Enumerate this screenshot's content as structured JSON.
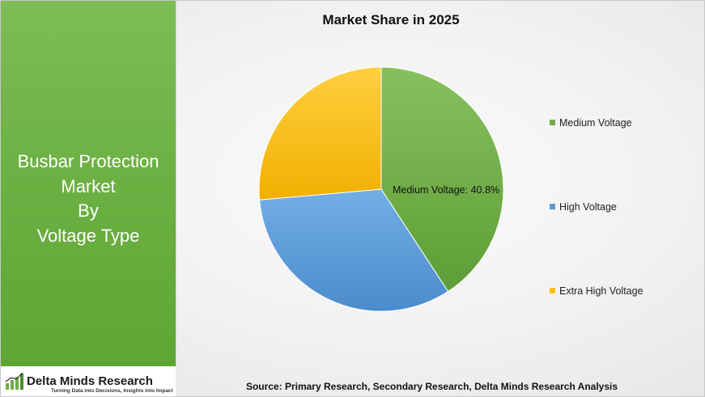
{
  "panel": {
    "title_lines": [
      "Busbar Protection",
      "Market",
      "By",
      "Voltage Type"
    ]
  },
  "logo": {
    "name": "Delta Minds Research",
    "tagline": "Turning Data into Decisions, Insights into Impact",
    "icon": "bar-chart-icon"
  },
  "colors": {
    "medium": "#70ad47",
    "high": "#5b9bd5",
    "extra_high": "#ffc000",
    "panel": "#6cb043"
  },
  "chart_data": {
    "type": "pie",
    "title": "Market Share in 2025",
    "categories": [
      "Medium Voltage",
      "High Voltage",
      "Extra High Voltage"
    ],
    "values": [
      40.8,
      32.8,
      26.4
    ],
    "unit": "%",
    "data_labels": [
      "Medium Voltage: 40.8%"
    ],
    "legend_position": "right"
  },
  "source_text": "Source: Primary Research, Secondary Research, Delta Minds Research Analysis"
}
